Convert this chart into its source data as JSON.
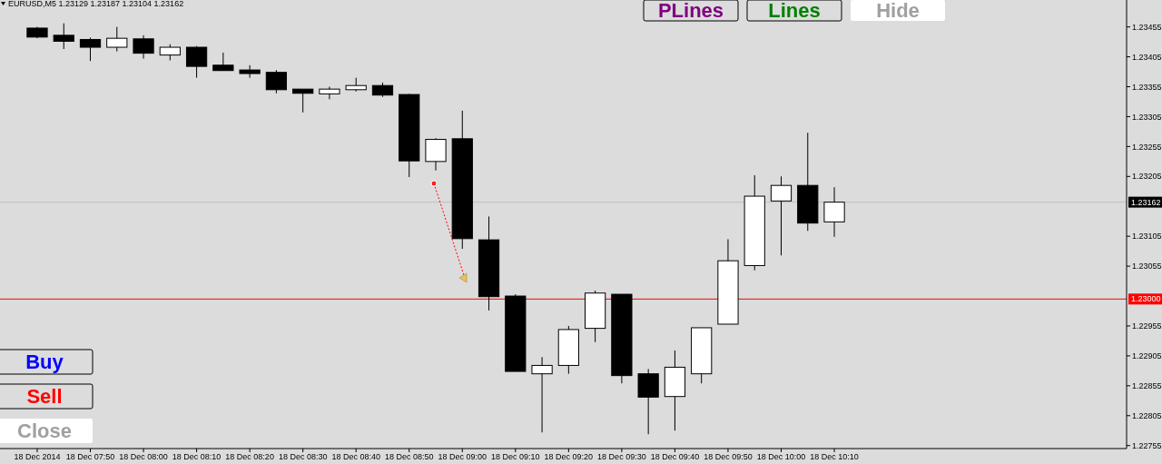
{
  "chart_data": {
    "type": "candlestick",
    "title": "EURUSD,M5  1.23129 1.23187 1.23104 1.23162",
    "x": [
      "2014-12-18T07:40",
      "2014-12-18T07:45",
      "2014-12-18T07:50",
      "2014-12-18T07:55",
      "2014-12-18T08:00",
      "2014-12-18T08:05",
      "2014-12-18T08:10",
      "2014-12-18T08:15",
      "2014-12-18T08:20",
      "2014-12-18T08:25",
      "2014-12-18T08:30",
      "2014-12-18T08:35",
      "2014-12-18T08:40",
      "2014-12-18T08:45",
      "2014-12-18T08:50",
      "2014-12-18T08:55",
      "2014-12-18T09:00",
      "2014-12-18T09:05",
      "2014-12-18T09:10",
      "2014-12-18T09:15",
      "2014-12-18T09:20",
      "2014-12-18T09:25",
      "2014-12-18T09:30",
      "2014-12-18T09:35",
      "2014-12-18T09:40",
      "2014-12-18T09:45",
      "2014-12-18T09:50",
      "2014-12-18T09:55",
      "2014-12-18T10:00",
      "2014-12-18T10:05",
      "2014-12-18T10:10"
    ],
    "ohlc": [
      [
        1.23453,
        1.23455,
        1.23436,
        1.23438
      ],
      [
        1.23441,
        1.23461,
        1.23418,
        1.23431
      ],
      [
        1.23434,
        1.23437,
        1.23398,
        1.23421
      ],
      [
        1.23421,
        1.23455,
        1.23414,
        1.23436
      ],
      [
        1.23435,
        1.23441,
        1.23402,
        1.23411
      ],
      [
        1.23408,
        1.23426,
        1.23399,
        1.23421
      ],
      [
        1.23421,
        1.23423,
        1.2337,
        1.23389
      ],
      [
        1.23391,
        1.23412,
        1.23382,
        1.23382
      ],
      [
        1.23383,
        1.23391,
        1.2337,
        1.23377
      ],
      [
        1.23379,
        1.23383,
        1.23344,
        1.2335
      ],
      [
        1.23351,
        1.23351,
        1.23312,
        1.23344
      ],
      [
        1.23343,
        1.23355,
        1.23334,
        1.23351
      ],
      [
        1.2335,
        1.2337,
        1.23347,
        1.23357
      ],
      [
        1.23357,
        1.23362,
        1.23338,
        1.23341
      ],
      [
        1.23342,
        1.23343,
        1.23204,
        1.23231
      ],
      [
        1.2323,
        1.23269,
        1.23215,
        1.23267
      ],
      [
        1.23268,
        1.23315,
        1.23084,
        1.23101
      ],
      [
        1.23099,
        1.23138,
        1.22981,
        1.23004
      ],
      [
        1.23005,
        1.23008,
        1.22879,
        1.22879
      ],
      [
        1.22875,
        1.22903,
        1.22777,
        1.22889
      ],
      [
        1.22889,
        1.22955,
        1.22875,
        1.22949
      ],
      [
        1.22951,
        1.23014,
        1.22928,
        1.2301
      ],
      [
        1.23008,
        1.23008,
        1.22859,
        1.22872
      ],
      [
        1.22875,
        1.22883,
        1.22774,
        1.22836
      ],
      [
        1.22837,
        1.22914,
        1.2278,
        1.22886
      ],
      [
        1.22875,
        1.22952,
        1.22859,
        1.22952
      ],
      [
        1.22958,
        1.231,
        1.22958,
        1.23064
      ],
      [
        1.23056,
        1.23207,
        1.23048,
        1.23172
      ],
      [
        1.23164,
        1.23205,
        1.23073,
        1.2319
      ],
      [
        1.2319,
        1.23278,
        1.23114,
        1.23127
      ],
      [
        1.23129,
        1.23187,
        1.23104,
        1.23162
      ]
    ],
    "colors": [
      "#000000",
      "#000000",
      "#000000",
      "#ffffff",
      "#000000",
      "#ffffff",
      "#000000",
      "#000000",
      "#000000",
      "#000000",
      "#000000",
      "#ffffff",
      "#ffffff",
      "#000000",
      "#000000",
      "#ffffff",
      "#000000",
      "#000000",
      "#000000",
      "#ffffff",
      "#ffffff",
      "#ffffff",
      "#000000",
      "#000000",
      "#ffffff",
      "#ffffff",
      "#ffffff",
      "#ffffff",
      "#ffffff",
      "#000000",
      "#ffffff"
    ],
    "xlim": [
      "2014-12-18T07:33",
      "2014-12-18T11:05"
    ],
    "xticks": [
      {
        "value": "2014-12-18T07:40",
        "label": "18 Dec 2014"
      },
      {
        "value": "2014-12-18T07:50",
        "label": "18 Dec 07:50"
      },
      {
        "value": "2014-12-18T08:00",
        "label": "18 Dec 08:00"
      },
      {
        "value": "2014-12-18T08:10",
        "label": "18 Dec 08:10"
      },
      {
        "value": "2014-12-18T08:20",
        "label": "18 Dec 08:20"
      },
      {
        "value": "2014-12-18T08:30",
        "label": "18 Dec 08:30"
      },
      {
        "value": "2014-12-18T08:40",
        "label": "18 Dec 08:40"
      },
      {
        "value": "2014-12-18T08:50",
        "label": "18 Dec 08:50"
      },
      {
        "value": "2014-12-18T09:00",
        "label": "18 Dec 09:00"
      },
      {
        "value": "2014-12-18T09:10",
        "label": "18 Dec 09:10"
      },
      {
        "value": "2014-12-18T09:20",
        "label": "18 Dec 09:20"
      },
      {
        "value": "2014-12-18T09:30",
        "label": "18 Dec 09:30"
      },
      {
        "value": "2014-12-18T09:40",
        "label": "18 Dec 09:40"
      },
      {
        "value": "2014-12-18T09:50",
        "label": "18 Dec 09:50"
      },
      {
        "value": "2014-12-18T10:00",
        "label": "18 Dec 10:00"
      },
      {
        "value": "2014-12-18T10:10",
        "label": "18 Dec 10:10"
      }
    ],
    "ylim": [
      1.2275,
      1.235
    ],
    "yticks": [
      {
        "value": 1.22755,
        "label": "1.22755"
      },
      {
        "value": 1.22805,
        "label": "1.22805"
      },
      {
        "value": 1.22855,
        "label": "1.22855"
      },
      {
        "value": 1.22905,
        "label": "1.22905"
      },
      {
        "value": 1.22955,
        "label": "1.22955"
      },
      {
        "value": 1.23055,
        "label": "1.23055"
      },
      {
        "value": 1.23105,
        "label": "1.23105"
      },
      {
        "value": 1.23205,
        "label": "1.23205"
      },
      {
        "value": 1.23255,
        "label": "1.23255"
      },
      {
        "value": 1.23305,
        "label": "1.23305"
      },
      {
        "value": 1.23355,
        "label": "1.23355"
      },
      {
        "value": 1.23405,
        "label": "1.23405"
      },
      {
        "value": 1.23455,
        "label": "1.23455"
      }
    ],
    "ref_lines": [
      {
        "axis": "y",
        "value": 1.23162,
        "label": "1.23162",
        "color": "#c0c0c0"
      },
      {
        "axis": "y",
        "value": 1.23,
        "label": "1.23000",
        "color": "#ff0000"
      }
    ],
    "annotations": [
      "PLines",
      "Lines",
      "Hide",
      "Buy",
      "Sell",
      "Close"
    ],
    "grid": false
  }
}
